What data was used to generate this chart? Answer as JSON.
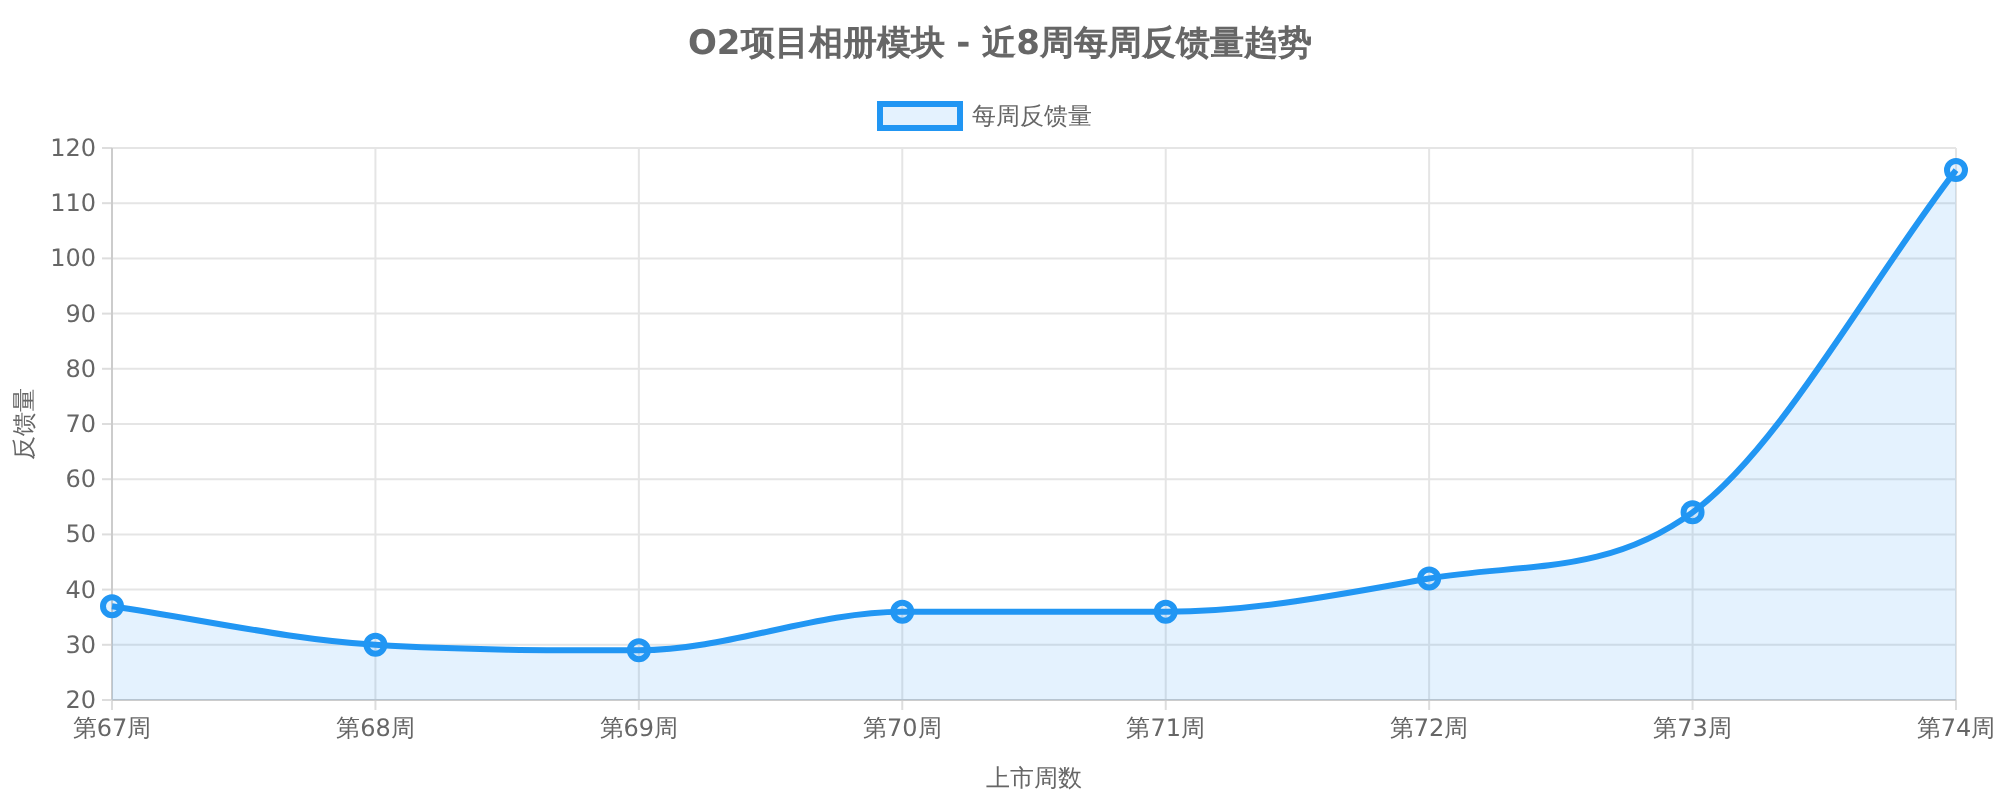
{
  "chart_data": {
    "type": "area",
    "title": "O2项目相册模块 - 近8周每周反馈量趋势",
    "categories": [
      "第67周",
      "第68周",
      "第69周",
      "第70周",
      "第71周",
      "第72周",
      "第73周",
      "第74周"
    ],
    "series": [
      {
        "name": "每周反馈量",
        "color": "#2196f3",
        "values": [
          37,
          30,
          29,
          36,
          36,
          42,
          54,
          116
        ]
      }
    ],
    "xlabel": "上市周数",
    "ylabel": "反馈量",
    "ylim": [
      20,
      120
    ],
    "yticks": [
      20,
      30,
      40,
      50,
      60,
      70,
      80,
      90,
      100,
      110,
      120
    ],
    "grid": true,
    "legend": "top",
    "marker": "circle"
  }
}
